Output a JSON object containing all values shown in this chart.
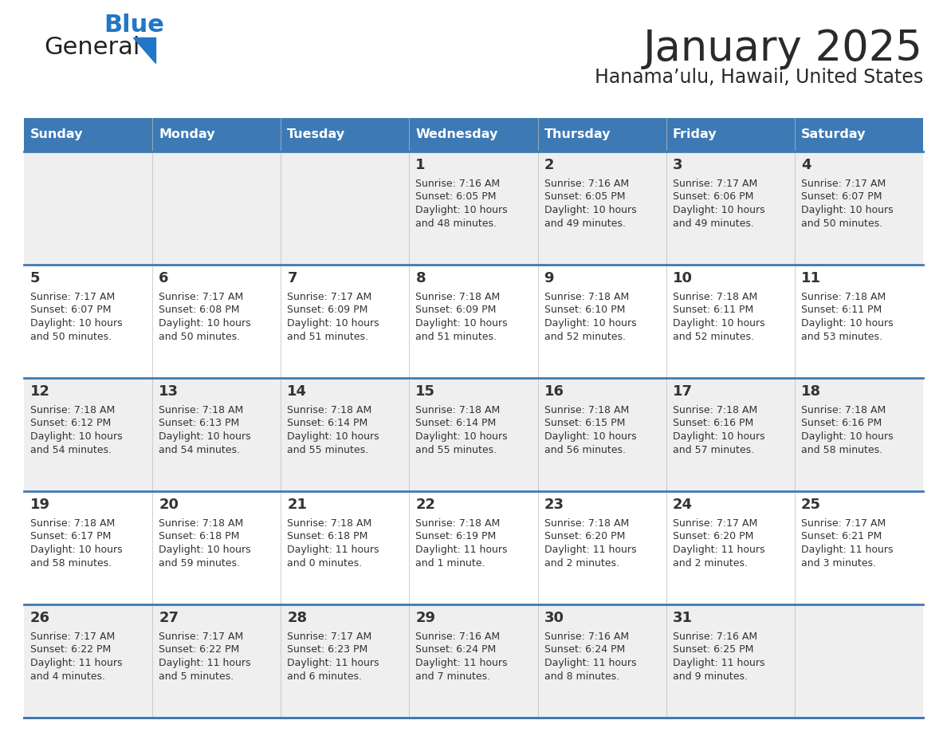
{
  "title": "January 2025",
  "subtitle": "Hanama’ulu, Hawaii, United States",
  "days_of_week": [
    "Sunday",
    "Monday",
    "Tuesday",
    "Wednesday",
    "Thursday",
    "Friday",
    "Saturday"
  ],
  "header_bg": "#3d7ab5",
  "header_text": "#ffffff",
  "cell_bg_odd": "#efefef",
  "cell_bg_even": "#ffffff",
  "divider_color": "#3d7ab5",
  "text_color": "#333333",
  "title_color": "#2a2a2a",
  "calendar_data": [
    [
      null,
      null,
      null,
      {
        "day": 1,
        "sunrise": "7:16 AM",
        "sunset": "6:05 PM",
        "daylight": "10 hours",
        "daylight2": "and 48 minutes."
      },
      {
        "day": 2,
        "sunrise": "7:16 AM",
        "sunset": "6:05 PM",
        "daylight": "10 hours",
        "daylight2": "and 49 minutes."
      },
      {
        "day": 3,
        "sunrise": "7:17 AM",
        "sunset": "6:06 PM",
        "daylight": "10 hours",
        "daylight2": "and 49 minutes."
      },
      {
        "day": 4,
        "sunrise": "7:17 AM",
        "sunset": "6:07 PM",
        "daylight": "10 hours",
        "daylight2": "and 50 minutes."
      }
    ],
    [
      {
        "day": 5,
        "sunrise": "7:17 AM",
        "sunset": "6:07 PM",
        "daylight": "10 hours",
        "daylight2": "and 50 minutes."
      },
      {
        "day": 6,
        "sunrise": "7:17 AM",
        "sunset": "6:08 PM",
        "daylight": "10 hours",
        "daylight2": "and 50 minutes."
      },
      {
        "day": 7,
        "sunrise": "7:17 AM",
        "sunset": "6:09 PM",
        "daylight": "10 hours",
        "daylight2": "and 51 minutes."
      },
      {
        "day": 8,
        "sunrise": "7:18 AM",
        "sunset": "6:09 PM",
        "daylight": "10 hours",
        "daylight2": "and 51 minutes."
      },
      {
        "day": 9,
        "sunrise": "7:18 AM",
        "sunset": "6:10 PM",
        "daylight": "10 hours",
        "daylight2": "and 52 minutes."
      },
      {
        "day": 10,
        "sunrise": "7:18 AM",
        "sunset": "6:11 PM",
        "daylight": "10 hours",
        "daylight2": "and 52 minutes."
      },
      {
        "day": 11,
        "sunrise": "7:18 AM",
        "sunset": "6:11 PM",
        "daylight": "10 hours",
        "daylight2": "and 53 minutes."
      }
    ],
    [
      {
        "day": 12,
        "sunrise": "7:18 AM",
        "sunset": "6:12 PM",
        "daylight": "10 hours",
        "daylight2": "and 54 minutes."
      },
      {
        "day": 13,
        "sunrise": "7:18 AM",
        "sunset": "6:13 PM",
        "daylight": "10 hours",
        "daylight2": "and 54 minutes."
      },
      {
        "day": 14,
        "sunrise": "7:18 AM",
        "sunset": "6:14 PM",
        "daylight": "10 hours",
        "daylight2": "and 55 minutes."
      },
      {
        "day": 15,
        "sunrise": "7:18 AM",
        "sunset": "6:14 PM",
        "daylight": "10 hours",
        "daylight2": "and 55 minutes."
      },
      {
        "day": 16,
        "sunrise": "7:18 AM",
        "sunset": "6:15 PM",
        "daylight": "10 hours",
        "daylight2": "and 56 minutes."
      },
      {
        "day": 17,
        "sunrise": "7:18 AM",
        "sunset": "6:16 PM",
        "daylight": "10 hours",
        "daylight2": "and 57 minutes."
      },
      {
        "day": 18,
        "sunrise": "7:18 AM",
        "sunset": "6:16 PM",
        "daylight": "10 hours",
        "daylight2": "and 58 minutes."
      }
    ],
    [
      {
        "day": 19,
        "sunrise": "7:18 AM",
        "sunset": "6:17 PM",
        "daylight": "10 hours",
        "daylight2": "and 58 minutes."
      },
      {
        "day": 20,
        "sunrise": "7:18 AM",
        "sunset": "6:18 PM",
        "daylight": "10 hours",
        "daylight2": "and 59 minutes."
      },
      {
        "day": 21,
        "sunrise": "7:18 AM",
        "sunset": "6:18 PM",
        "daylight": "11 hours",
        "daylight2": "and 0 minutes."
      },
      {
        "day": 22,
        "sunrise": "7:18 AM",
        "sunset": "6:19 PM",
        "daylight": "11 hours",
        "daylight2": "and 1 minute."
      },
      {
        "day": 23,
        "sunrise": "7:18 AM",
        "sunset": "6:20 PM",
        "daylight": "11 hours",
        "daylight2": "and 2 minutes."
      },
      {
        "day": 24,
        "sunrise": "7:17 AM",
        "sunset": "6:20 PM",
        "daylight": "11 hours",
        "daylight2": "and 2 minutes."
      },
      {
        "day": 25,
        "sunrise": "7:17 AM",
        "sunset": "6:21 PM",
        "daylight": "11 hours",
        "daylight2": "and 3 minutes."
      }
    ],
    [
      {
        "day": 26,
        "sunrise": "7:17 AM",
        "sunset": "6:22 PM",
        "daylight": "11 hours",
        "daylight2": "and 4 minutes."
      },
      {
        "day": 27,
        "sunrise": "7:17 AM",
        "sunset": "6:22 PM",
        "daylight": "11 hours",
        "daylight2": "and 5 minutes."
      },
      {
        "day": 28,
        "sunrise": "7:17 AM",
        "sunset": "6:23 PM",
        "daylight": "11 hours",
        "daylight2": "and 6 minutes."
      },
      {
        "day": 29,
        "sunrise": "7:16 AM",
        "sunset": "6:24 PM",
        "daylight": "11 hours",
        "daylight2": "and 7 minutes."
      },
      {
        "day": 30,
        "sunrise": "7:16 AM",
        "sunset": "6:24 PM",
        "daylight": "11 hours",
        "daylight2": "and 8 minutes."
      },
      {
        "day": 31,
        "sunrise": "7:16 AM",
        "sunset": "6:25 PM",
        "daylight": "11 hours",
        "daylight2": "and 9 minutes."
      },
      null
    ]
  ],
  "logo_color1": "#222222",
  "logo_color2": "#2176c7"
}
